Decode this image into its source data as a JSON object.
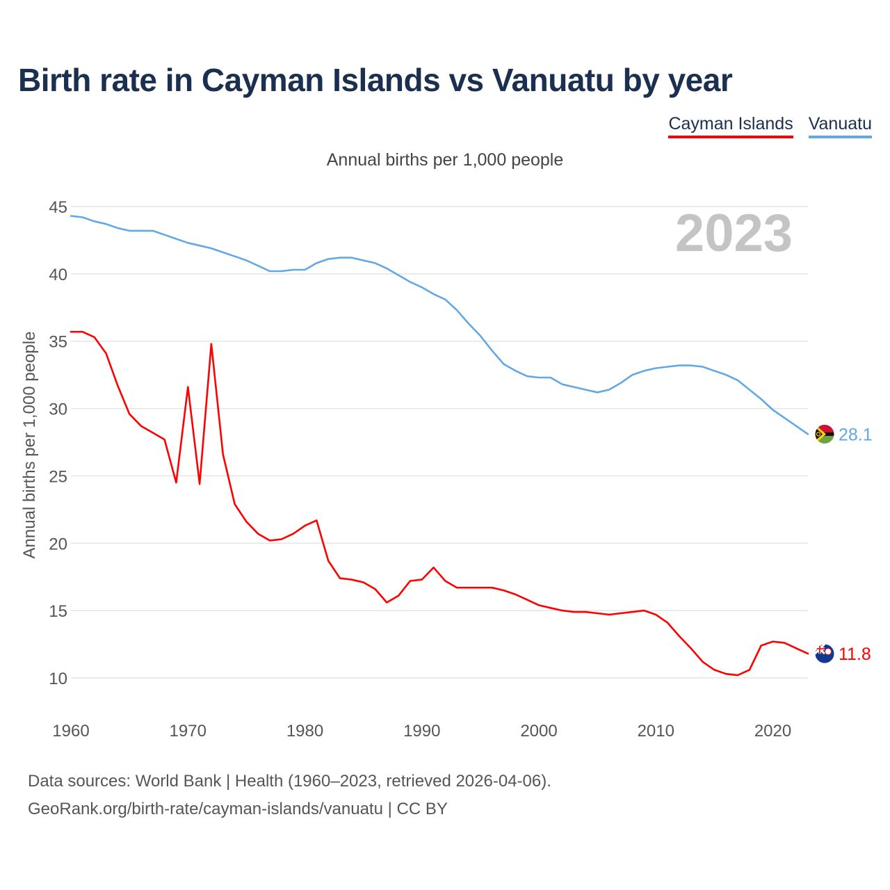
{
  "title": "Birth rate in Cayman Islands vs Vanuatu by year",
  "legend": {
    "items": [
      {
        "label": "Cayman Islands",
        "color": "#ff0000"
      },
      {
        "label": "Vanuatu",
        "color": "#62a8e5"
      }
    ]
  },
  "subtitle": "Annual births per 1,000 people",
  "year_label": "2023",
  "footer": {
    "line1": "Data sources: World Bank | Health (1960–2023, retrieved 2026-04-06).",
    "line2": "GeoRank.org/birth-rate/cayman-islands/vanuatu | CC BY"
  },
  "chart_data": {
    "type": "line",
    "title": "Birth rate in Cayman Islands vs Vanuatu by year",
    "xlabel": "",
    "ylabel": "Annual births per 1,000 people",
    "xlim": [
      1960,
      2023
    ],
    "ylim": [
      10,
      45
    ],
    "x_ticks": [
      1960,
      1970,
      1980,
      1990,
      2000,
      2010,
      2020
    ],
    "y_ticks": [
      10,
      15,
      20,
      25,
      30,
      35,
      40,
      45
    ],
    "grid": true,
    "legend_position": "top-right",
    "x": [
      1960,
      1961,
      1962,
      1963,
      1964,
      1965,
      1966,
      1967,
      1968,
      1969,
      1970,
      1971,
      1972,
      1973,
      1974,
      1975,
      1976,
      1977,
      1978,
      1979,
      1980,
      1981,
      1982,
      1983,
      1984,
      1985,
      1986,
      1987,
      1988,
      1989,
      1990,
      1991,
      1992,
      1993,
      1994,
      1995,
      1996,
      1997,
      1998,
      1999,
      2000,
      2001,
      2002,
      2003,
      2004,
      2005,
      2006,
      2007,
      2008,
      2009,
      2010,
      2011,
      2012,
      2013,
      2014,
      2015,
      2016,
      2017,
      2018,
      2019,
      2020,
      2021,
      2022,
      2023
    ],
    "series": [
      {
        "name": "Cayman Islands",
        "color": "#ff0000",
        "end_label": "11.8",
        "values": [
          35.7,
          35.7,
          35.3,
          34.1,
          31.7,
          29.6,
          28.7,
          28.2,
          27.7,
          24.5,
          31.6,
          24.4,
          34.8,
          26.6,
          22.9,
          21.6,
          20.7,
          20.2,
          20.3,
          20.7,
          21.3,
          21.7,
          18.7,
          17.4,
          17.3,
          17.1,
          16.6,
          15.6,
          16.1,
          17.2,
          17.3,
          18.2,
          17.2,
          16.7,
          16.7,
          16.7,
          16.7,
          16.5,
          16.2,
          15.8,
          15.4,
          15.2,
          15.0,
          14.9,
          14.9,
          14.8,
          14.7,
          14.8,
          14.9,
          15.0,
          14.7,
          14.1,
          13.1,
          12.2,
          11.2,
          10.6,
          10.3,
          10.2,
          10.6,
          12.4,
          12.7,
          12.6,
          12.2,
          11.8
        ]
      },
      {
        "name": "Vanuatu",
        "color": "#62a8e5",
        "end_label": "28.1",
        "values": [
          44.3,
          44.2,
          43.9,
          43.7,
          43.4,
          43.2,
          43.2,
          43.2,
          42.9,
          42.6,
          42.3,
          42.1,
          41.9,
          41.6,
          41.3,
          41.0,
          40.6,
          40.2,
          40.2,
          40.3,
          40.3,
          40.8,
          41.1,
          41.2,
          41.2,
          41.0,
          40.8,
          40.4,
          39.9,
          39.4,
          39.0,
          38.5,
          38.1,
          37.3,
          36.3,
          35.4,
          34.3,
          33.3,
          32.8,
          32.4,
          32.3,
          32.3,
          31.8,
          31.6,
          31.4,
          31.2,
          31.4,
          31.9,
          32.5,
          32.8,
          33.0,
          33.1,
          33.2,
          33.2,
          33.1,
          32.8,
          32.5,
          32.1,
          31.4,
          30.7,
          29.9,
          29.3,
          28.7,
          28.1
        ]
      }
    ]
  }
}
